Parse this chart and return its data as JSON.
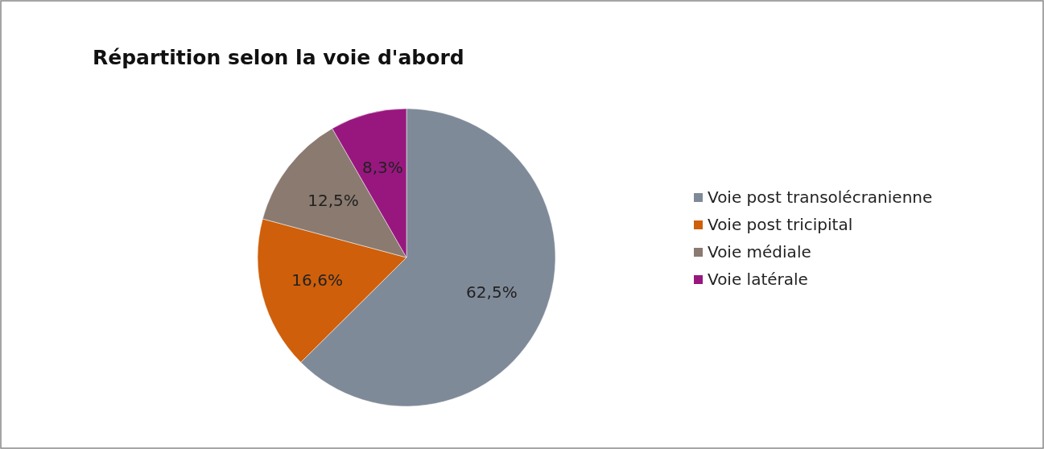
{
  "chart_data": {
    "type": "pie",
    "title": "Répartition selon la voie d'abord",
    "categories": [
      "Voie post transolécranienne",
      "Voie post tricipital",
      "Voie médiale",
      "Voie latérale"
    ],
    "values": [
      62.5,
      16.6,
      12.5,
      8.3
    ],
    "colors": [
      "#7f8a99",
      "#cf5f0a",
      "#8a7a70",
      "#98177f"
    ],
    "value_labels": [
      "62,5%",
      "16,6%",
      "12,5%",
      "8,3%"
    ],
    "legend": "right"
  }
}
